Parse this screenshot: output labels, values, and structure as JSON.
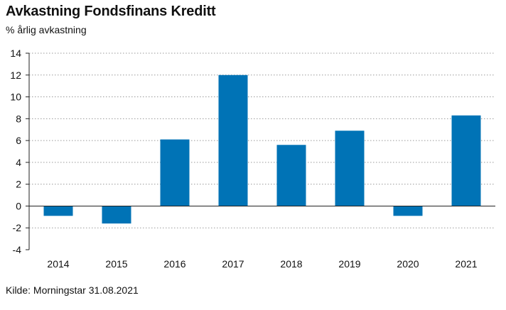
{
  "title": "Avkastning Fondsfinans Kreditt",
  "subtitle": "% årlig avkastning",
  "source": "Kilde: Morningstar 31.08.2021",
  "colors": {
    "bar": "#0073b6",
    "grid": "#9a9a9a",
    "axis": "#222222"
  },
  "chart_data": {
    "type": "bar",
    "categories": [
      "2014",
      "2015",
      "2016",
      "2017",
      "2018",
      "2019",
      "2020",
      "2021"
    ],
    "values": [
      -0.9,
      -1.6,
      6.1,
      12.0,
      5.6,
      6.9,
      -0.9,
      8.3
    ],
    "ylim": [
      -4,
      14
    ],
    "yticks": [
      -4,
      -2,
      0,
      2,
      4,
      6,
      8,
      10,
      12,
      14
    ],
    "xlabel": "",
    "ylabel": "",
    "grid": true,
    "legend": "none"
  }
}
